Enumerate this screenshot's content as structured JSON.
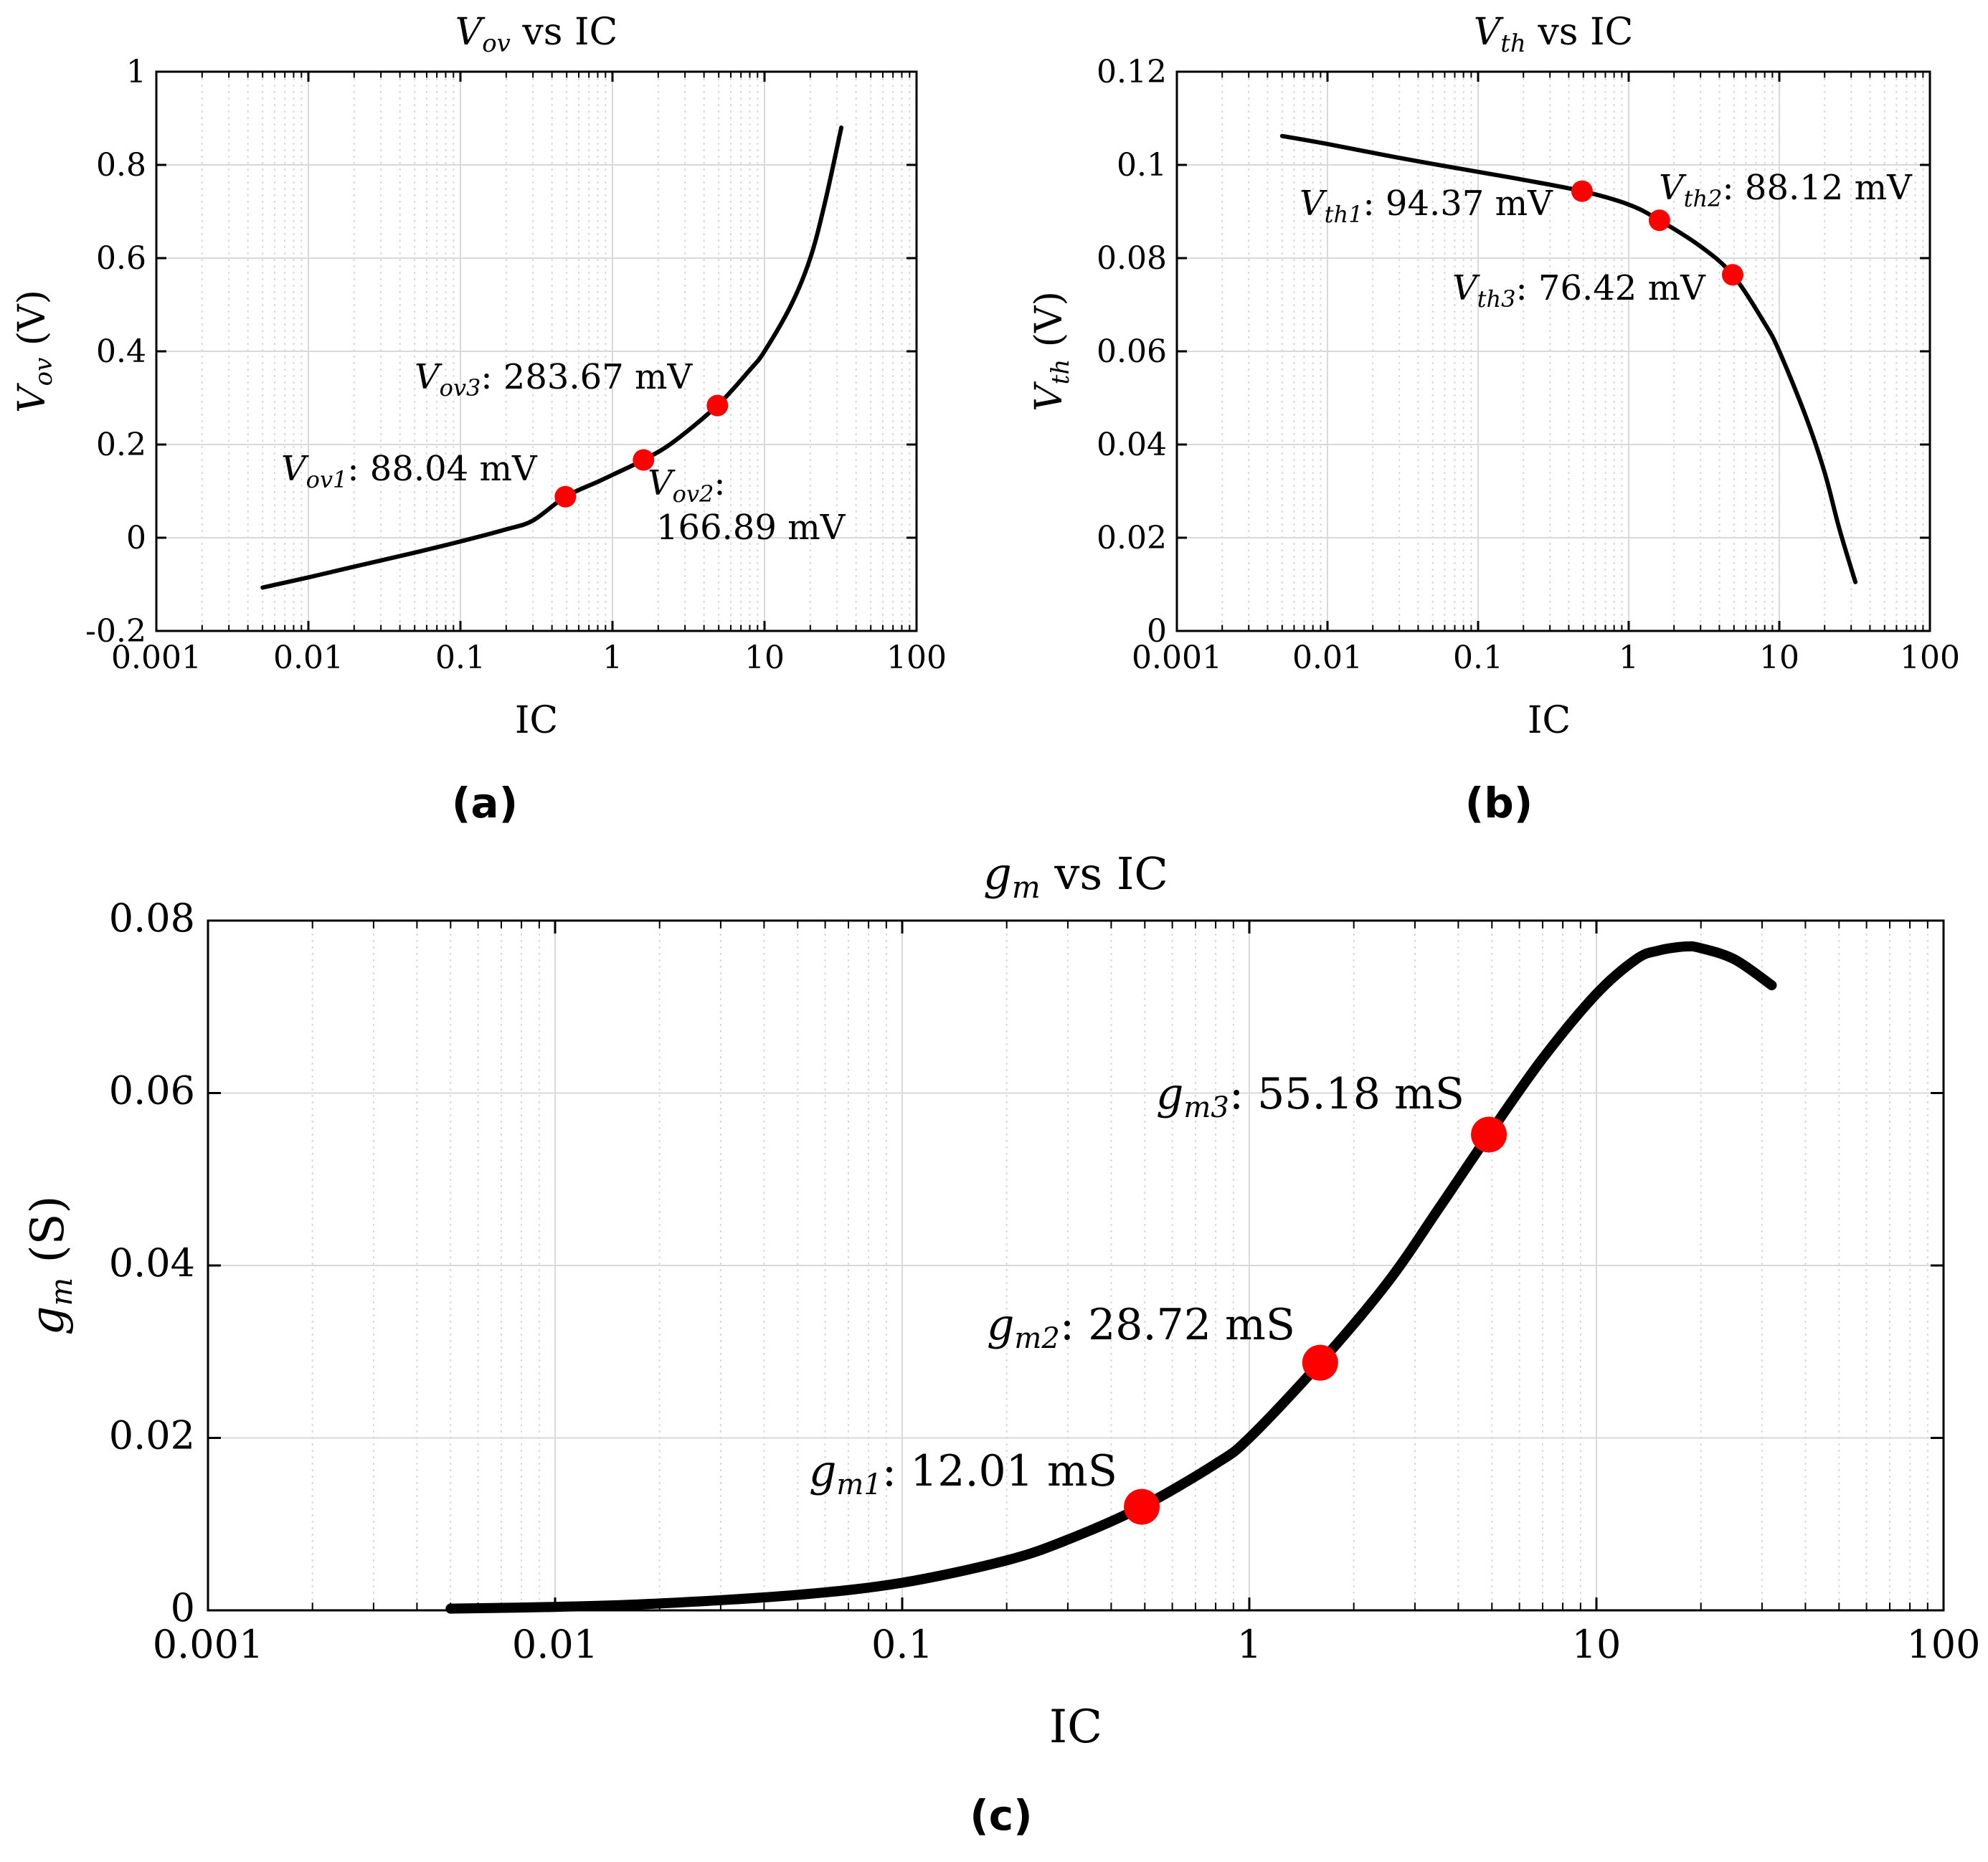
{
  "chart_data": [
    {
      "id": "a",
      "type": "line",
      "title_main": "V",
      "title_sub": "ov",
      "title_rest": " vs IC",
      "xlabel": "IC",
      "ylabel_main": "V",
      "ylabel_sub": "ov",
      "ylabel_rest": " (V)",
      "xscale": "log",
      "xlim": [
        0.001,
        100
      ],
      "ylim": [
        -0.2,
        1
      ],
      "xticks": [
        0.001,
        0.01,
        0.1,
        1,
        10,
        100
      ],
      "xtick_labels": [
        "0.001",
        "0.01",
        "0.1",
        "1",
        "10",
        "100"
      ],
      "yticks": [
        -0.2,
        0,
        0.2,
        0.4,
        0.6,
        0.8,
        1
      ],
      "ytick_labels": [
        "-0.2",
        "0",
        "0.2",
        "0.4",
        "0.6",
        "0.8",
        "1"
      ],
      "grid": true,
      "series": [
        {
          "name": "Vov",
          "x": [
            0.005,
            0.01,
            0.02,
            0.05,
            0.1,
            0.2,
            0.3,
            0.49,
            0.8,
            1.0,
            1.6,
            2.5,
            4.9,
            8,
            10,
            15,
            20,
            25,
            32
          ],
          "y": [
            -0.107,
            -0.085,
            -0.062,
            -0.032,
            -0.008,
            0.018,
            0.037,
            0.088,
            0.12,
            0.135,
            0.167,
            0.205,
            0.284,
            0.36,
            0.4,
            0.5,
            0.6,
            0.72,
            0.88
          ]
        }
      ],
      "points": [
        {
          "x": 0.49,
          "y": 0.08804,
          "label_main": "V",
          "label_sub": "ov1",
          "label_value": ": 88.04 mV"
        },
        {
          "x": 1.6,
          "y": 0.16689,
          "label_main": "V",
          "label_sub": "ov2",
          "label_value": ":",
          "label_value2": "166.89 mV"
        },
        {
          "x": 4.9,
          "y": 0.28367,
          "label_main": "V",
          "label_sub": "ov3",
          "label_value": ": 283.67 mV"
        }
      ],
      "panel_label": "(a)"
    },
    {
      "id": "b",
      "type": "line",
      "title_main": "V",
      "title_sub": "th",
      "title_rest": " vs IC",
      "xlabel": "IC",
      "ylabel_main": "V",
      "ylabel_sub": "th",
      "ylabel_rest": " (V)",
      "xscale": "log",
      "xlim": [
        0.001,
        100
      ],
      "ylim": [
        0,
        0.12
      ],
      "xticks": [
        0.001,
        0.01,
        0.1,
        1,
        10,
        100
      ],
      "xtick_labels": [
        "0.001",
        "0.01",
        "0.1",
        "1",
        "10",
        "100"
      ],
      "yticks": [
        0,
        0.02,
        0.04,
        0.06,
        0.08,
        0.1,
        0.12
      ],
      "ytick_labels": [
        "0",
        "0.02",
        "0.04",
        "0.06",
        "0.08",
        "0.1",
        "0.12"
      ],
      "grid": true,
      "series": [
        {
          "name": "Vth",
          "x": [
            0.005,
            0.01,
            0.03,
            0.1,
            0.2,
            0.49,
            1.0,
            1.6,
            3.0,
            4.9,
            8,
            10,
            15,
            20,
            25,
            32
          ],
          "y": [
            0.1062,
            0.1045,
            0.1015,
            0.0985,
            0.0968,
            0.09437,
            0.0915,
            0.08812,
            0.0825,
            0.07642,
            0.066,
            0.06,
            0.046,
            0.034,
            0.022,
            0.0105
          ]
        }
      ],
      "points": [
        {
          "x": 0.49,
          "y": 0.09437,
          "label_main": "V",
          "label_sub": "th1",
          "label_value": ": 94.37 mV"
        },
        {
          "x": 1.6,
          "y": 0.08812,
          "label_main": "V",
          "label_sub": "th2",
          "label_value": ": 88.12 mV"
        },
        {
          "x": 4.9,
          "y": 0.07642,
          "label_main": "V",
          "label_sub": "th3",
          "label_value": ": 76.42 mV"
        }
      ],
      "panel_label": "(b)"
    },
    {
      "id": "c",
      "type": "line",
      "title_main": "g",
      "title_sub": "m",
      "title_rest": " vs IC",
      "xlabel": "IC",
      "ylabel_main": "g",
      "ylabel_sub": "m",
      "ylabel_rest": " (S)",
      "xscale": "log",
      "xlim": [
        0.001,
        100
      ],
      "ylim": [
        0,
        0.08
      ],
      "xticks": [
        0.001,
        0.01,
        0.1,
        1,
        10,
        100
      ],
      "xtick_labels": [
        "0.001",
        "0.01",
        "0.1",
        "1",
        "10",
        "100"
      ],
      "yticks": [
        0,
        0.02,
        0.04,
        0.06,
        0.08
      ],
      "ytick_labels": [
        "0",
        "0.02",
        "0.04",
        "0.06",
        "0.08"
      ],
      "grid": true,
      "series": [
        {
          "name": "gm",
          "x": [
            0.005,
            0.01,
            0.02,
            0.05,
            0.1,
            0.2,
            0.3,
            0.49,
            0.8,
            1.0,
            1.6,
            2.5,
            3.5,
            4.9,
            7,
            10,
            13,
            15,
            18,
            20,
            25,
            32
          ],
          "y": [
            0.0002,
            0.0004,
            0.0008,
            0.0018,
            0.0032,
            0.0058,
            0.0082,
            0.01201,
            0.017,
            0.02,
            0.02872,
            0.038,
            0.0465,
            0.05518,
            0.064,
            0.0715,
            0.0755,
            0.0765,
            0.077,
            0.0768,
            0.0755,
            0.0725
          ]
        }
      ],
      "points": [
        {
          "x": 0.49,
          "y": 0.01201,
          "label_main": "g",
          "label_sub": "m1",
          "label_value": ": 12.01 mS"
        },
        {
          "x": 1.6,
          "y": 0.02872,
          "label_main": "g",
          "label_sub": "m2",
          "label_value": ": 28.72 mS"
        },
        {
          "x": 4.9,
          "y": 0.05518,
          "label_main": "g",
          "label_sub": "m3",
          "label_value": ": 55.18 mS"
        }
      ],
      "panel_label": "(c)"
    }
  ],
  "colors": {
    "line": "#000000",
    "marker": "#ff0000",
    "grid": "#d9d9d9",
    "axis": "#000000"
  }
}
